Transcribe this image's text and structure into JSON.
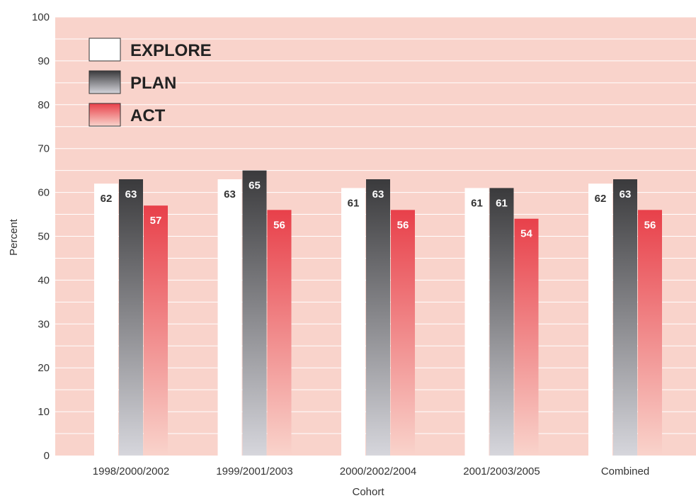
{
  "chart_data": {
    "type": "bar",
    "title": "",
    "xlabel": "Cohort",
    "ylabel": "Percent",
    "ylim": [
      0,
      100
    ],
    "yticks": [
      0,
      10,
      20,
      30,
      40,
      50,
      60,
      70,
      80,
      90,
      100
    ],
    "grid": true,
    "legend_position": "top-left",
    "categories": [
      "1998/2000/2002",
      "1999/2001/2003",
      "2000/2002/2004",
      "2001/2003/2005",
      "Combined"
    ],
    "series": [
      {
        "name": "EXPLORE",
        "values": [
          62,
          63,
          61,
          61,
          62
        ]
      },
      {
        "name": "PLAN",
        "values": [
          63,
          65,
          63,
          61,
          63
        ]
      },
      {
        "name": "ACT",
        "values": [
          57,
          56,
          56,
          54,
          56
        ]
      }
    ]
  },
  "colors": {
    "plot_background": "#f9d3cb",
    "grid_line": "#ffffff",
    "explore_fill": "#ffffff",
    "plan_top": "#3a3a3c",
    "plan_bottom": "#d6d6dc",
    "act_top": "#e8404a",
    "act_bottom": "#f9d3cb",
    "explore_label": "#333333",
    "inverted_label": "#ffffff"
  }
}
